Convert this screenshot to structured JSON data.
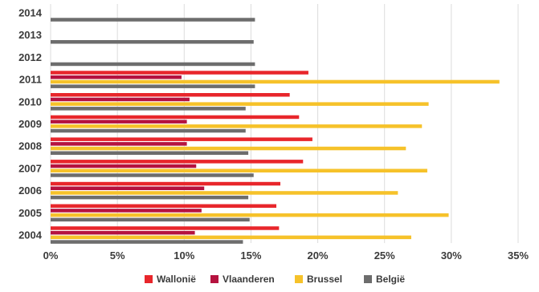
{
  "chart_data": {
    "type": "bar",
    "orientation": "horizontal",
    "categories": [
      "2004",
      "2005",
      "2006",
      "2007",
      "2008",
      "2009",
      "2010",
      "2011",
      "2012",
      "2013",
      "2014"
    ],
    "series": [
      {
        "name": "Wallonië",
        "color": "#e8262b",
        "values": [
          17.1,
          16.9,
          17.2,
          18.9,
          19.6,
          18.6,
          17.9,
          19.3,
          null,
          null,
          null
        ]
      },
      {
        "name": "Vlaanderen",
        "color": "#b5123f",
        "values": [
          10.8,
          11.3,
          11.5,
          10.9,
          10.2,
          10.2,
          10.4,
          9.8,
          null,
          null,
          null
        ]
      },
      {
        "name": "Brussel",
        "color": "#f6c22a",
        "values": [
          27.0,
          29.8,
          26.0,
          28.2,
          26.6,
          27.8,
          28.3,
          33.6,
          null,
          null,
          null
        ]
      },
      {
        "name": "België",
        "color": "#6d6d6d",
        "values": [
          14.4,
          14.9,
          14.8,
          15.2,
          14.8,
          14.6,
          14.6,
          15.3,
          15.3,
          15.2,
          15.3
        ]
      }
    ],
    "x_ticks": [
      "0%",
      "5%",
      "10%",
      "15%",
      "20%",
      "25%",
      "30%",
      "35%"
    ],
    "xlim": [
      0,
      35
    ],
    "grid": true,
    "legend_position": "bottom"
  }
}
